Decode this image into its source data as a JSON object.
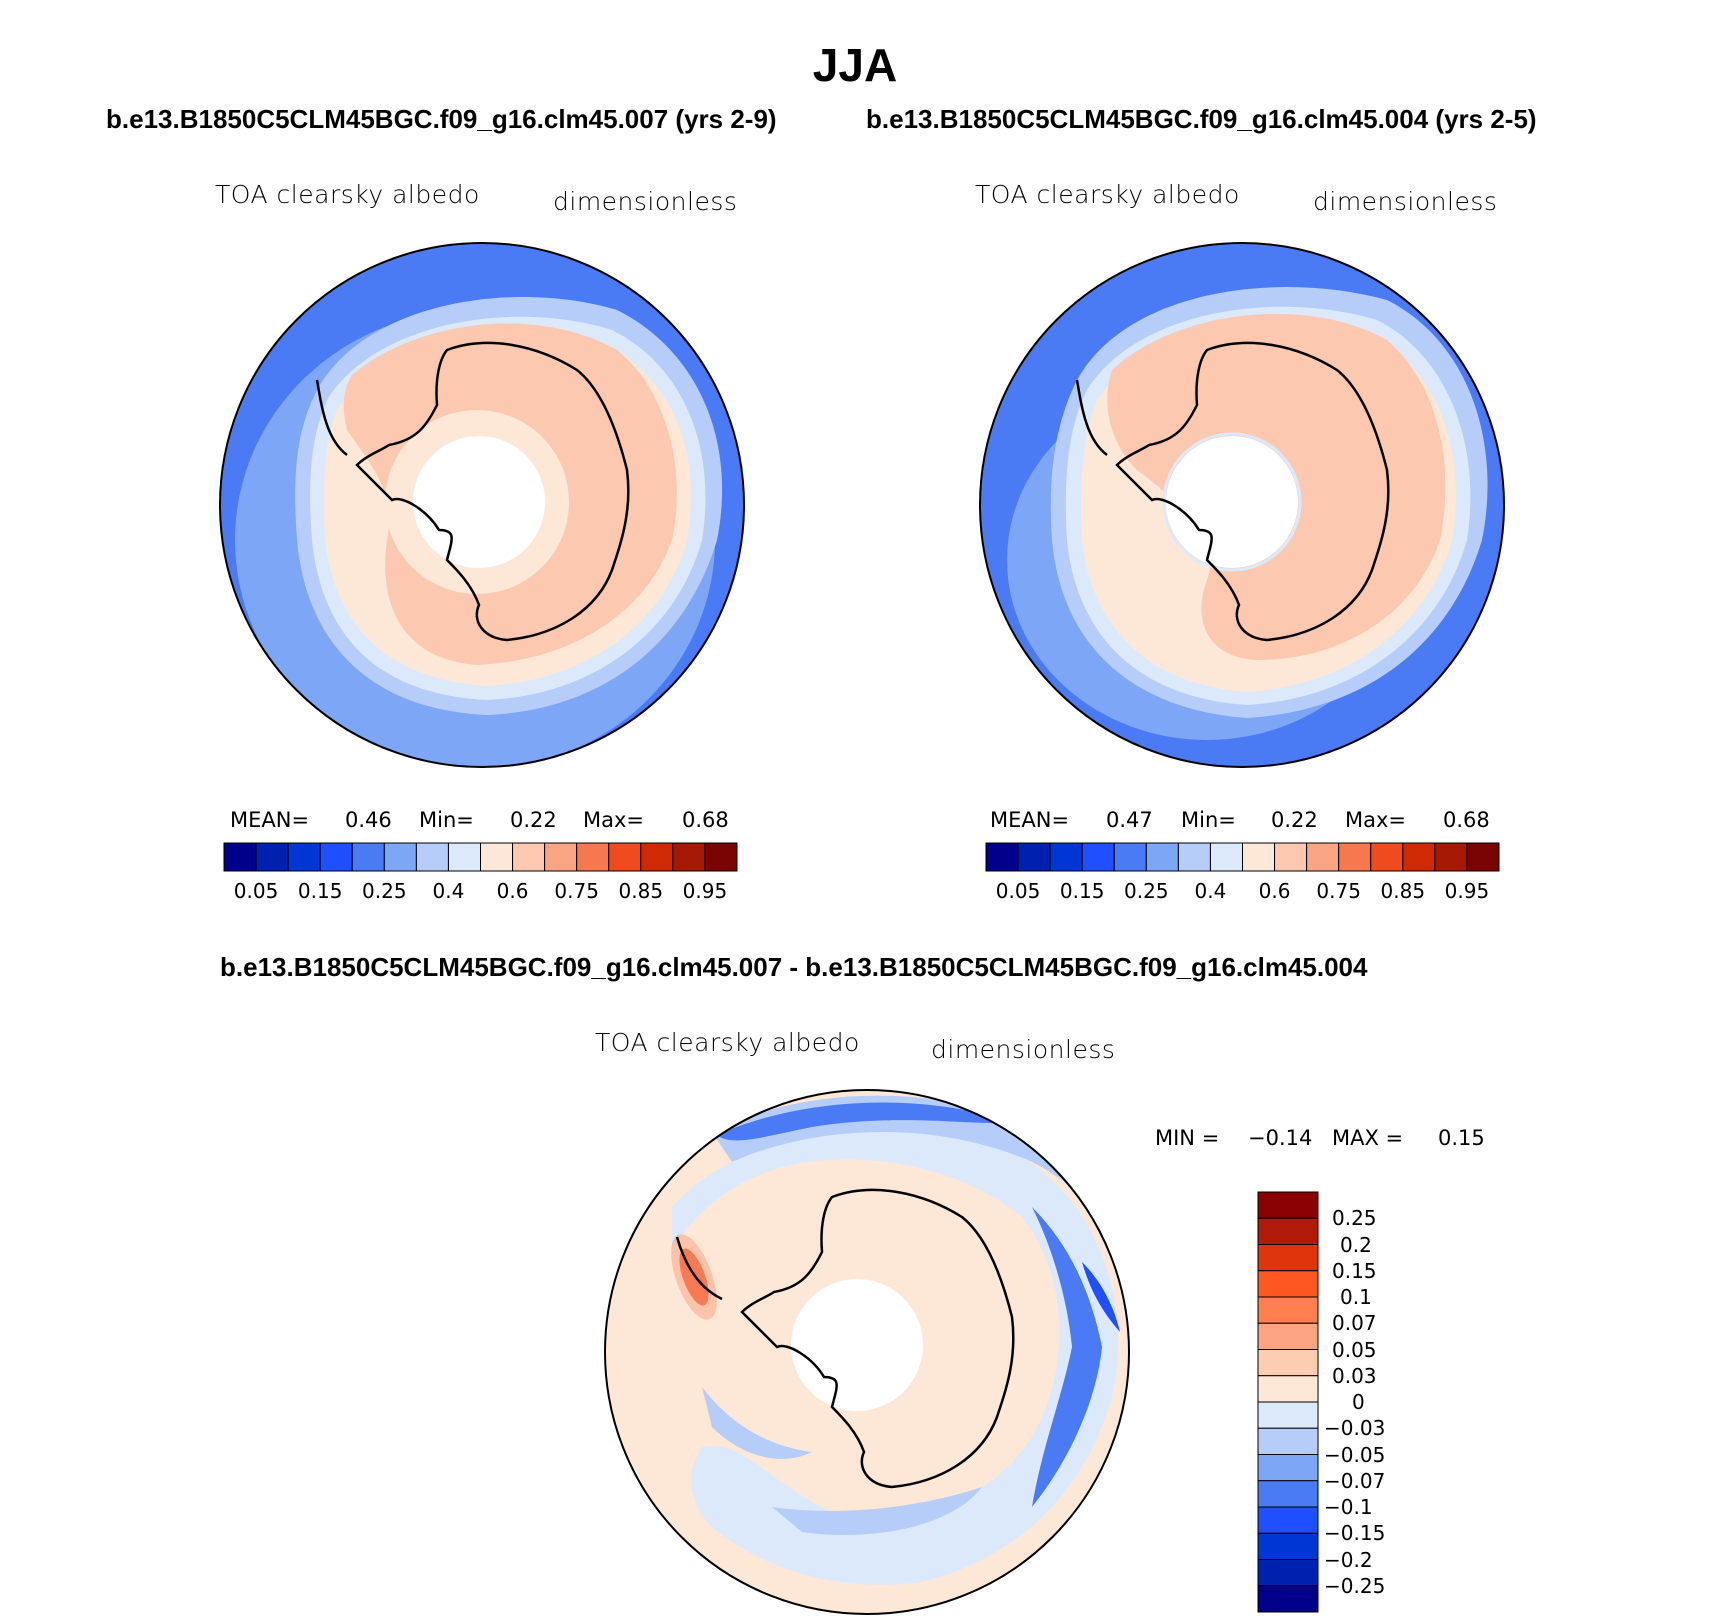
{
  "figure": {
    "title": "JJA",
    "case1_title": "b.e13.B1850C5CLM45BGC.f09_g16.clm45.007 (yrs 2-9)",
    "case2_title": "b.e13.B1850C5CLM45BGC.f09_g16.clm45.004 (yrs 2-5)",
    "diff_title": "b.e13.B1850C5CLM45BGC.f09_g16.clm45.007 - b.e13.B1850C5CLM45BGC.f09_g16.clm45.004"
  },
  "panels": [
    {
      "variable": "TOA clearsky albedo",
      "units": "dimensionless",
      "stats": {
        "mean_label": "MEAN=",
        "mean": "0.46",
        "min_label": "Min=",
        "min": "0.22",
        "max_label": "Max=",
        "max": "0.68"
      }
    },
    {
      "variable": "TOA clearsky albedo",
      "units": "dimensionless",
      "stats": {
        "mean_label": "MEAN=",
        "mean": "0.47",
        "min_label": "Min=",
        "min": "0.22",
        "max_label": "Max=",
        "max": "0.68"
      }
    },
    {
      "variable": "TOA clearsky albedo",
      "units": "dimensionless",
      "stats": {
        "min_label": "MIN =",
        "min": "−0.14",
        "max_label": "MAX =",
        "max": "0.15"
      }
    }
  ],
  "colorbars": {
    "absolute": {
      "colors": [
        "#00008b",
        "#0020b0",
        "#0037d4",
        "#1f4fff",
        "#4a7bf5",
        "#7ea6f7",
        "#b5cdf8",
        "#dce9fb",
        "#fde8d8",
        "#fcc9b0",
        "#f9a583",
        "#f7784f",
        "#f04a1f",
        "#d02a04",
        "#a61a05",
        "#7a0403"
      ],
      "labels": [
        "0.05",
        "0.15",
        "0.25",
        "0.4",
        "0.6",
        "0.75",
        "0.85",
        "0.95"
      ]
    },
    "difference": {
      "colors": [
        "#8b0000",
        "#b01a06",
        "#e0350c",
        "#ff5722",
        "#ff7f50",
        "#fca482",
        "#fdcdb2",
        "#fde8d8",
        "#dce9fb",
        "#b5cdf8",
        "#7ea6f7",
        "#4a7bf5",
        "#1f4fff",
        "#0037d4",
        "#0020b0",
        "#00008b"
      ],
      "labels": [
        "0.25",
        "0.2",
        "0.15",
        "0.1",
        "0.07",
        "0.05",
        "0.03",
        "0",
        "−0.03",
        "−0.05",
        "−0.07",
        "−0.1",
        "−0.15",
        "−0.2",
        "−0.25"
      ]
    }
  },
  "map_colors": {
    "ocean_outer": "#4a7bf5",
    "ocean_mid": "#7ea6f7",
    "ocean_light": "#b5cdf8",
    "band_lightest": "#dce9fb",
    "cream": "#fde8d8",
    "salmon": "#fcc9b0",
    "diff_bg": "#fde8d8",
    "diff_light": "#dce9fb",
    "diff_mid": "#b5cdf8",
    "diff_blue": "#4a7bf5",
    "diff_dark": "#1f4fff",
    "diff_red": "#f04a1f"
  }
}
